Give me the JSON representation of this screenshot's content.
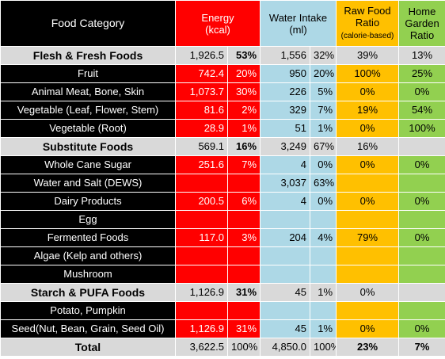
{
  "headers": {
    "category": "Food Category",
    "energy_line1": "Energy",
    "energy_line2": "(kcal)",
    "water_line1": "Water Intake",
    "water_line2": "(ml)",
    "raw_line1": "Raw Food",
    "raw_line2": "Ratio",
    "raw_line3": "(calorie-based)",
    "home_line1": "Home",
    "home_line2": "Garden",
    "home_line3": "Ratio"
  },
  "rows": [
    {
      "type": "section",
      "name": "Flesh & Fresh Foods",
      "energy": "1,926.5",
      "energy_pct": "53%",
      "water": "1,556",
      "water_pct": "32%",
      "raw": "39%",
      "home": "13%"
    },
    {
      "type": "item",
      "name": "Fruit",
      "energy": "742.4",
      "energy_pct": "20%",
      "water": "950",
      "water_pct": "20%",
      "raw": "100%",
      "home": "25%"
    },
    {
      "type": "item",
      "name": "Animal Meat, Bone, Skin",
      "energy": "1,073.7",
      "energy_pct": "30%",
      "water": "226",
      "water_pct": "5%",
      "raw": "0%",
      "home": "0%"
    },
    {
      "type": "item",
      "name": "Vegetable (Leaf, Flower, Stem)",
      "energy": "81.6",
      "energy_pct": "2%",
      "water": "329",
      "water_pct": "7%",
      "raw": "19%",
      "home": "54%"
    },
    {
      "type": "item",
      "name": "Vegetable (Root)",
      "energy": "28.9",
      "energy_pct": "1%",
      "water": "51",
      "water_pct": "1%",
      "raw": "0%",
      "home": "100%"
    },
    {
      "type": "section",
      "name": "Substitute Foods",
      "energy": "569.1",
      "energy_pct": "16%",
      "water": "3,249",
      "water_pct": "67%",
      "raw": "16%",
      "home": ""
    },
    {
      "type": "item",
      "name": "Whole Cane Sugar",
      "energy": "251.6",
      "energy_pct": "7%",
      "water": "4",
      "water_pct": "0%",
      "raw": "0%",
      "home": "0%"
    },
    {
      "type": "item",
      "name": "Water and Salt (DEWS)",
      "energy": "",
      "energy_pct": "",
      "water": "3,037",
      "water_pct": "63%",
      "raw": "",
      "home": ""
    },
    {
      "type": "item",
      "name": "Dairy Products",
      "energy": "200.5",
      "energy_pct": "6%",
      "water": "4",
      "water_pct": "0%",
      "raw": "0%",
      "home": "0%"
    },
    {
      "type": "item",
      "name": "Egg",
      "energy": "",
      "energy_pct": "",
      "water": "",
      "water_pct": "",
      "raw": "",
      "home": ""
    },
    {
      "type": "item",
      "name": "Fermented Foods",
      "energy": "117.0",
      "energy_pct": "3%",
      "water": "204",
      "water_pct": "4%",
      "raw": "79%",
      "home": "0%"
    },
    {
      "type": "item",
      "name": "Algae (Kelp and others)",
      "energy": "",
      "energy_pct": "",
      "water": "",
      "water_pct": "",
      "raw": "",
      "home": ""
    },
    {
      "type": "item",
      "name": "Mushroom",
      "energy": "",
      "energy_pct": "",
      "water": "",
      "water_pct": "",
      "raw": "",
      "home": ""
    },
    {
      "type": "section",
      "name": "Starch & PUFA Foods",
      "energy": "1,126.9",
      "energy_pct": "31%",
      "water": "45",
      "water_pct": "1%",
      "raw": "0%",
      "home": ""
    },
    {
      "type": "item",
      "name": "Potato, Pumpkin",
      "energy": "",
      "energy_pct": "",
      "water": "",
      "water_pct": "",
      "raw": "",
      "home": ""
    },
    {
      "type": "item",
      "name": "Seed(Nut, Bean, Grain, Seed Oil)",
      "energy": "1,126.9",
      "energy_pct": "31%",
      "water": "45",
      "water_pct": "1%",
      "raw": "0%",
      "home": "0%"
    },
    {
      "type": "total",
      "name": "Total",
      "energy": "3,622.5",
      "energy_pct": "100%",
      "water": "4,850.0",
      "water_pct": "100%",
      "raw": "23%",
      "home": "7%"
    }
  ]
}
